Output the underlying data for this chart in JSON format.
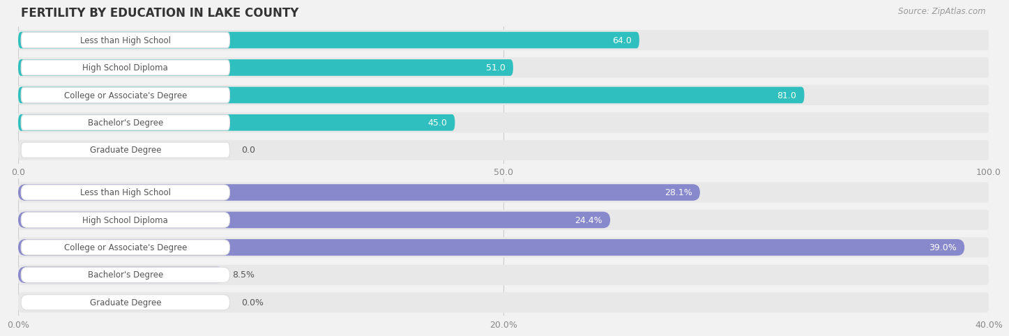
{
  "title": "FERTILITY BY EDUCATION IN LAKE COUNTY",
  "source": "Source: ZipAtlas.com",
  "chart1": {
    "categories": [
      "Less than High School",
      "High School Diploma",
      "College or Associate's Degree",
      "Bachelor's Degree",
      "Graduate Degree"
    ],
    "values": [
      64.0,
      51.0,
      81.0,
      45.0,
      0.0
    ],
    "xlim": [
      0,
      100
    ],
    "xticks": [
      0.0,
      50.0,
      100.0
    ],
    "xtick_labels": [
      "0.0",
      "50.0",
      "100.0"
    ],
    "bar_color": "#30bfbf",
    "bar_color_light": "#b0e0e0",
    "value_labels": [
      "64.0",
      "51.0",
      "81.0",
      "45.0",
      "0.0"
    ],
    "value_inside": [
      true,
      true,
      true,
      true,
      false
    ],
    "value_threshold": 15
  },
  "chart2": {
    "categories": [
      "Less than High School",
      "High School Diploma",
      "College or Associate's Degree",
      "Bachelor's Degree",
      "Graduate Degree"
    ],
    "values": [
      28.1,
      24.4,
      39.0,
      8.5,
      0.0
    ],
    "xlim": [
      0,
      40
    ],
    "xticks": [
      0.0,
      20.0,
      40.0
    ],
    "xtick_labels": [
      "0.0%",
      "20.0%",
      "40.0%"
    ],
    "bar_color": "#8888cc",
    "bar_color_light": "#c8c8e8",
    "value_labels": [
      "28.1%",
      "24.4%",
      "39.0%",
      "8.5%",
      "0.0%"
    ],
    "value_inside": [
      true,
      true,
      true,
      false,
      false
    ],
    "value_threshold": 6
  },
  "label_box_color": "#ffffff",
  "label_text_color": "#555555",
  "bg_color": "#f2f2f2",
  "row_bg_color": "#e8e8e8",
  "title_color": "#333333",
  "source_color": "#999999",
  "bar_height": 0.6,
  "row_sep_color": "#ffffff"
}
